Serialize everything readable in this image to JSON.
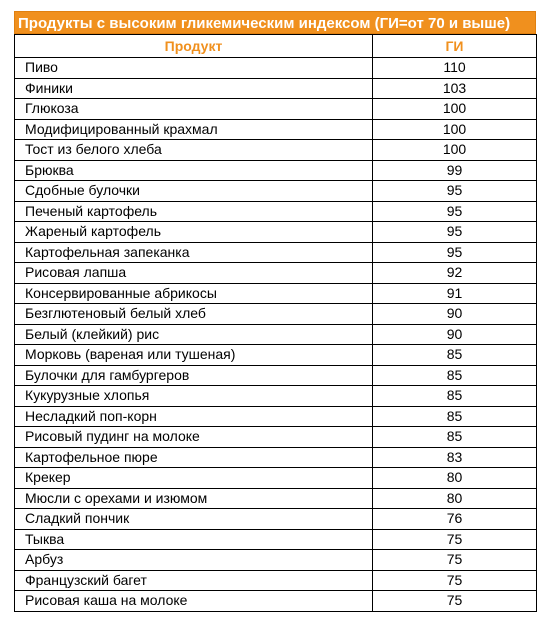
{
  "title": "Продукты с высоким гликемическим индексом (ГИ=от 70 и выше)",
  "columns": {
    "product": "Продукт",
    "gi": "ГИ"
  },
  "rows": [
    {
      "product": "Пиво",
      "gi": "110"
    },
    {
      "product": "Финики",
      "gi": "103"
    },
    {
      "product": "Глюкоза",
      "gi": "100"
    },
    {
      "product": "Модифицированный крахмал",
      "gi": "100"
    },
    {
      "product": "Тост из белого хлеба",
      "gi": "100"
    },
    {
      "product": "Брюква",
      "gi": "99"
    },
    {
      "product": "Сдобные булочки",
      "gi": "95"
    },
    {
      "product": "Печеный картофель",
      "gi": "95"
    },
    {
      "product": "Жареный картофель",
      "gi": "95"
    },
    {
      "product": "Картофельная запеканка",
      "gi": "95"
    },
    {
      "product": "Рисовая лапша",
      "gi": "92"
    },
    {
      "product": "Консервированные абрикосы",
      "gi": "91"
    },
    {
      "product": "Безглютеновый белый хлеб",
      "gi": "90"
    },
    {
      "product": "Белый (клейкий) рис",
      "gi": "90"
    },
    {
      "product": "Морковь (вареная или тушеная)",
      "gi": "85"
    },
    {
      "product": "Булочки для гамбургеров",
      "gi": "85"
    },
    {
      "product": "Кукурузные хлопья",
      "gi": "85"
    },
    {
      "product": "Несладкий поп-корн",
      "gi": "85"
    },
    {
      "product": "Рисовый пудинг на молоке",
      "gi": "85"
    },
    {
      "product": "Картофельное пюре",
      "gi": "83"
    },
    {
      "product": "Крекер",
      "gi": "80"
    },
    {
      "product": "Мюсли с орехами и изюмом",
      "gi": "80"
    },
    {
      "product": "Сладкий пончик",
      "gi": "76"
    },
    {
      "product": "Тыква",
      "gi": "75"
    },
    {
      "product": "Арбуз",
      "gi": "75"
    },
    {
      "product": "Французский багет",
      "gi": "75"
    },
    {
      "product": "Рисовая каша на молоке",
      "gi": "75"
    }
  ],
  "colors": {
    "accent": "#f0901e",
    "text": "#000000",
    "grid": "#000000"
  }
}
